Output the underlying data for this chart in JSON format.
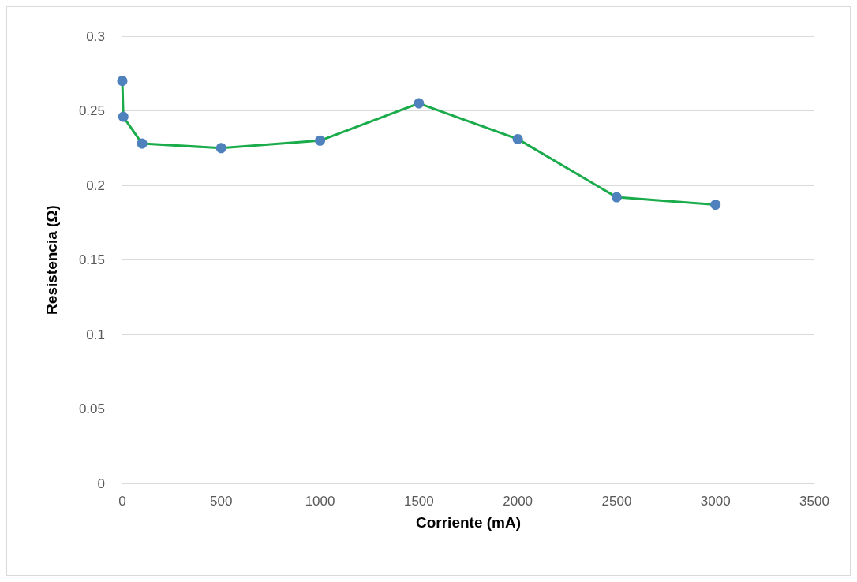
{
  "chart_data": {
    "type": "line",
    "xlabel": "Corriente (mA)",
    "ylabel": "Resistencia (Ω)",
    "x": [
      0,
      5,
      100,
      500,
      1000,
      1500,
      2000,
      2500,
      3000
    ],
    "series": [
      {
        "color": "#1aab4b",
        "colors": [
          "#4f81bd",
          "#4f81bd",
          "#4f81bd",
          "#4f81bd",
          "#4f81bd",
          "#4f81bd",
          "#4f81bd",
          "#4f81bd",
          "#4f81bd"
        ],
        "values": [
          0.27,
          0.246,
          0.228,
          0.225,
          0.23,
          0.255,
          0.231,
          0.192,
          0.187
        ]
      }
    ],
    "xlim": [
      0,
      3500
    ],
    "xticks": [
      0,
      500,
      1000,
      1500,
      2000,
      2500,
      3000,
      3500
    ],
    "ylim": [
      0,
      0.3
    ],
    "yticks": [
      0,
      0.05,
      0.1,
      0.15,
      0.2,
      0.25,
      0.3
    ],
    "grid": "y",
    "marker": "circle",
    "line_style": "solid"
  }
}
